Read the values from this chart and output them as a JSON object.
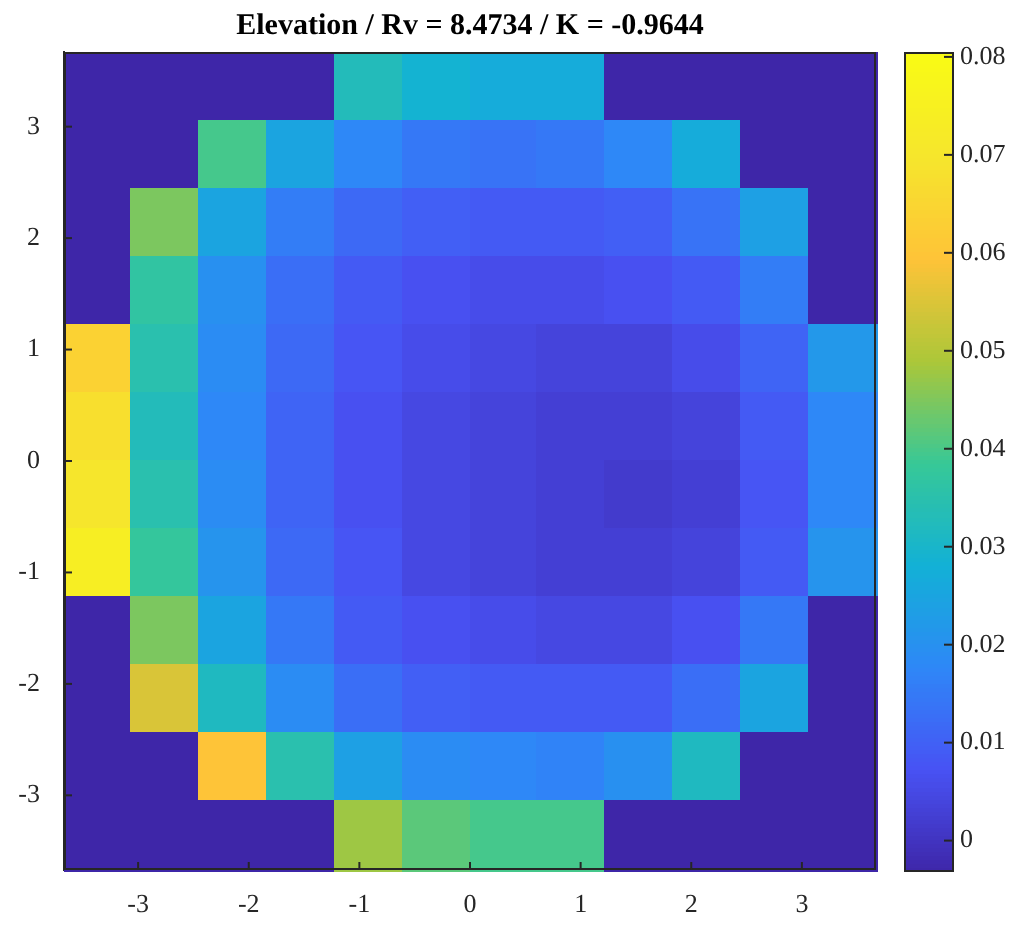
{
  "chart_data": {
    "type": "heatmap",
    "title": "Elevation / Rv = 8.4734 / K = -0.9644",
    "xlim": [
      -3.67,
      3.67
    ],
    "ylim": [
      -3.67,
      3.67
    ],
    "xticks": [
      -3,
      -2,
      -1,
      0,
      1,
      2,
      3
    ],
    "yticks": [
      -3,
      -2,
      -1,
      0,
      1,
      2,
      3
    ],
    "clim": [
      -0.003,
      0.0805
    ],
    "cticks": [
      0,
      0.01,
      0.02,
      0.03,
      0.04,
      0.05,
      0.06,
      0.07,
      0.08
    ],
    "cells": [
      [
        -0.003,
        -0.003,
        -0.003,
        -0.003,
        0.033,
        0.029,
        0.027,
        0.027,
        -0.003,
        -0.003,
        -0.003,
        -0.003
      ],
      [
        -0.003,
        -0.003,
        0.04,
        0.025,
        0.018,
        0.015,
        0.014,
        0.015,
        0.018,
        0.027,
        -0.003,
        -0.003
      ],
      [
        -0.003,
        0.045,
        0.025,
        0.016,
        0.012,
        0.01,
        0.009,
        0.009,
        0.01,
        0.014,
        0.024,
        -0.003
      ],
      [
        -0.003,
        0.037,
        0.02,
        0.013,
        0.009,
        0.007,
        0.006,
        0.006,
        0.007,
        0.009,
        0.016,
        -0.003
      ],
      [
        0.064,
        0.035,
        0.019,
        0.012,
        0.008,
        0.006,
        0.005,
        0.004,
        0.004,
        0.006,
        0.011,
        0.022
      ],
      [
        0.068,
        0.033,
        0.018,
        0.011,
        0.007,
        0.005,
        0.004,
        0.003,
        0.003,
        0.004,
        0.009,
        0.018
      ],
      [
        0.07,
        0.035,
        0.019,
        0.011,
        0.007,
        0.005,
        0.004,
        0.003,
        0.002,
        0.003,
        0.008,
        0.018
      ],
      [
        0.074,
        0.038,
        0.021,
        0.012,
        0.008,
        0.005,
        0.004,
        0.003,
        0.003,
        0.004,
        0.009,
        0.021
      ],
      [
        -0.003,
        0.045,
        0.025,
        0.015,
        0.009,
        0.007,
        0.006,
        0.005,
        0.005,
        0.007,
        0.015,
        -0.003
      ],
      [
        -0.003,
        0.055,
        0.032,
        0.019,
        0.013,
        0.01,
        0.009,
        0.009,
        0.009,
        0.013,
        0.025,
        -0.003
      ],
      [
        -0.003,
        -0.003,
        0.06,
        0.035,
        0.024,
        0.019,
        0.018,
        0.017,
        0.02,
        0.032,
        -0.003,
        -0.003
      ],
      [
        -0.003,
        -0.003,
        -0.003,
        -0.003,
        0.048,
        0.042,
        0.04,
        0.04,
        -0.003,
        -0.003,
        -0.003,
        -0.003
      ]
    ]
  }
}
